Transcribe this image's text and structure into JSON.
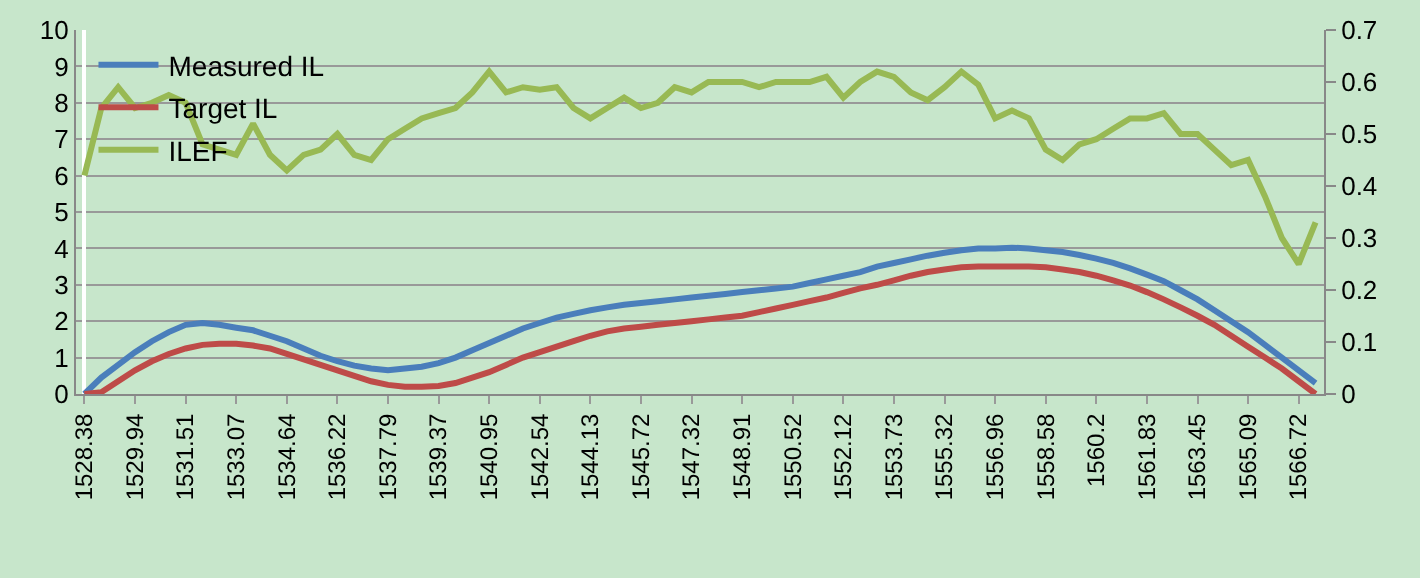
{
  "chart_data": {
    "type": "line",
    "categories": [
      "1528.38",
      null,
      null,
      "1529.94",
      null,
      null,
      "1531.51",
      null,
      null,
      "1533.07",
      null,
      null,
      "1534.64",
      null,
      null,
      "1536.22",
      null,
      null,
      "1537.79",
      null,
      null,
      "1539.37",
      null,
      null,
      "1540.95",
      null,
      null,
      "1542.54",
      null,
      null,
      "1544.13",
      null,
      null,
      "1545.72",
      null,
      null,
      "1547.32",
      null,
      null,
      "1548.91",
      null,
      null,
      "1550.52",
      null,
      null,
      "1552.12",
      null,
      null,
      "1553.73",
      null,
      null,
      "1555.32",
      null,
      null,
      "1556.96",
      null,
      null,
      "1558.58",
      null,
      null,
      "1560.2",
      null,
      null,
      "1561.83",
      null,
      null,
      "1563.45",
      null,
      null,
      "1565.09",
      null,
      null,
      "1566.72",
      null
    ],
    "series": [
      {
        "name": "Measured IL",
        "color": "#4a7ebb",
        "values": [
          0,
          0.45,
          0.8,
          1.15,
          1.45,
          1.7,
          1.9,
          1.95,
          1.9,
          1.82,
          1.75,
          1.6,
          1.45,
          1.25,
          1.05,
          0.9,
          0.78,
          0.7,
          0.65,
          0.7,
          0.75,
          0.85,
          1.0,
          1.2,
          1.4,
          1.6,
          1.8,
          1.95,
          2.1,
          2.2,
          2.3,
          2.38,
          2.45,
          2.5,
          2.55,
          2.6,
          2.65,
          2.7,
          2.75,
          2.8,
          2.85,
          2.9,
          2.95,
          3.05,
          3.15,
          3.25,
          3.35,
          3.5,
          3.6,
          3.7,
          3.8,
          3.88,
          3.95,
          4.0,
          4.0,
          4.02,
          4.0,
          3.95,
          3.9,
          3.82,
          3.72,
          3.6,
          3.45,
          3.28,
          3.1,
          2.85,
          2.6,
          2.3,
          2.0,
          1.7,
          1.35,
          1.0,
          0.65,
          0.3
        ]
      },
      {
        "name": "Target IL",
        "color": "#be4b48",
        "values": [
          0,
          0.05,
          0.35,
          0.65,
          0.9,
          1.1,
          1.25,
          1.35,
          1.38,
          1.38,
          1.33,
          1.25,
          1.1,
          0.95,
          0.8,
          0.65,
          0.5,
          0.35,
          0.25,
          0.2,
          0.2,
          0.22,
          0.3,
          0.45,
          0.6,
          0.8,
          1.0,
          1.15,
          1.3,
          1.45,
          1.6,
          1.72,
          1.8,
          1.85,
          1.9,
          1.95,
          2.0,
          2.05,
          2.1,
          2.15,
          2.25,
          2.35,
          2.45,
          2.55,
          2.65,
          2.78,
          2.9,
          3.0,
          3.12,
          3.25,
          3.35,
          3.42,
          3.48,
          3.5,
          3.5,
          3.5,
          3.5,
          3.48,
          3.42,
          3.35,
          3.25,
          3.12,
          2.98,
          2.8,
          2.6,
          2.38,
          2.15,
          1.9,
          1.6,
          1.3,
          1.0,
          0.7,
          0.35,
          0.0
        ]
      },
      {
        "name": "ILEF",
        "color": "#98b954",
        "axis": "y2",
        "values": [
          0.42,
          0.55,
          0.59,
          0.55,
          0.56,
          0.575,
          0.56,
          0.48,
          0.47,
          0.46,
          0.52,
          0.46,
          0.43,
          0.46,
          0.47,
          0.5,
          0.46,
          0.45,
          0.49,
          0.51,
          0.53,
          0.54,
          0.55,
          0.58,
          0.62,
          0.58,
          0.59,
          0.585,
          0.59,
          0.55,
          0.53,
          0.55,
          0.57,
          0.55,
          0.56,
          0.59,
          0.58,
          0.6,
          0.6,
          0.6,
          0.59,
          0.6,
          0.6,
          0.6,
          0.61,
          0.57,
          0.6,
          0.62,
          0.61,
          0.58,
          0.565,
          0.59,
          0.62,
          0.595,
          0.53,
          0.545,
          0.53,
          0.47,
          0.45,
          0.48,
          0.49,
          0.51,
          0.53,
          0.53,
          0.54,
          0.5,
          0.5,
          0.47,
          0.44,
          0.45,
          0.38,
          0.3,
          0.25,
          0.33
        ]
      }
    ],
    "ylim": [
      0,
      10
    ],
    "yticks": [
      0,
      1,
      2,
      3,
      4,
      5,
      6,
      7,
      8,
      9,
      10
    ],
    "y2lim": [
      0,
      0.7
    ],
    "y2ticks": [
      0,
      0.1,
      0.2,
      0.3,
      0.4,
      0.5,
      0.6,
      0.7
    ],
    "grid": "y",
    "legend": "top left",
    "marker": "none",
    "line_style": "solid"
  }
}
